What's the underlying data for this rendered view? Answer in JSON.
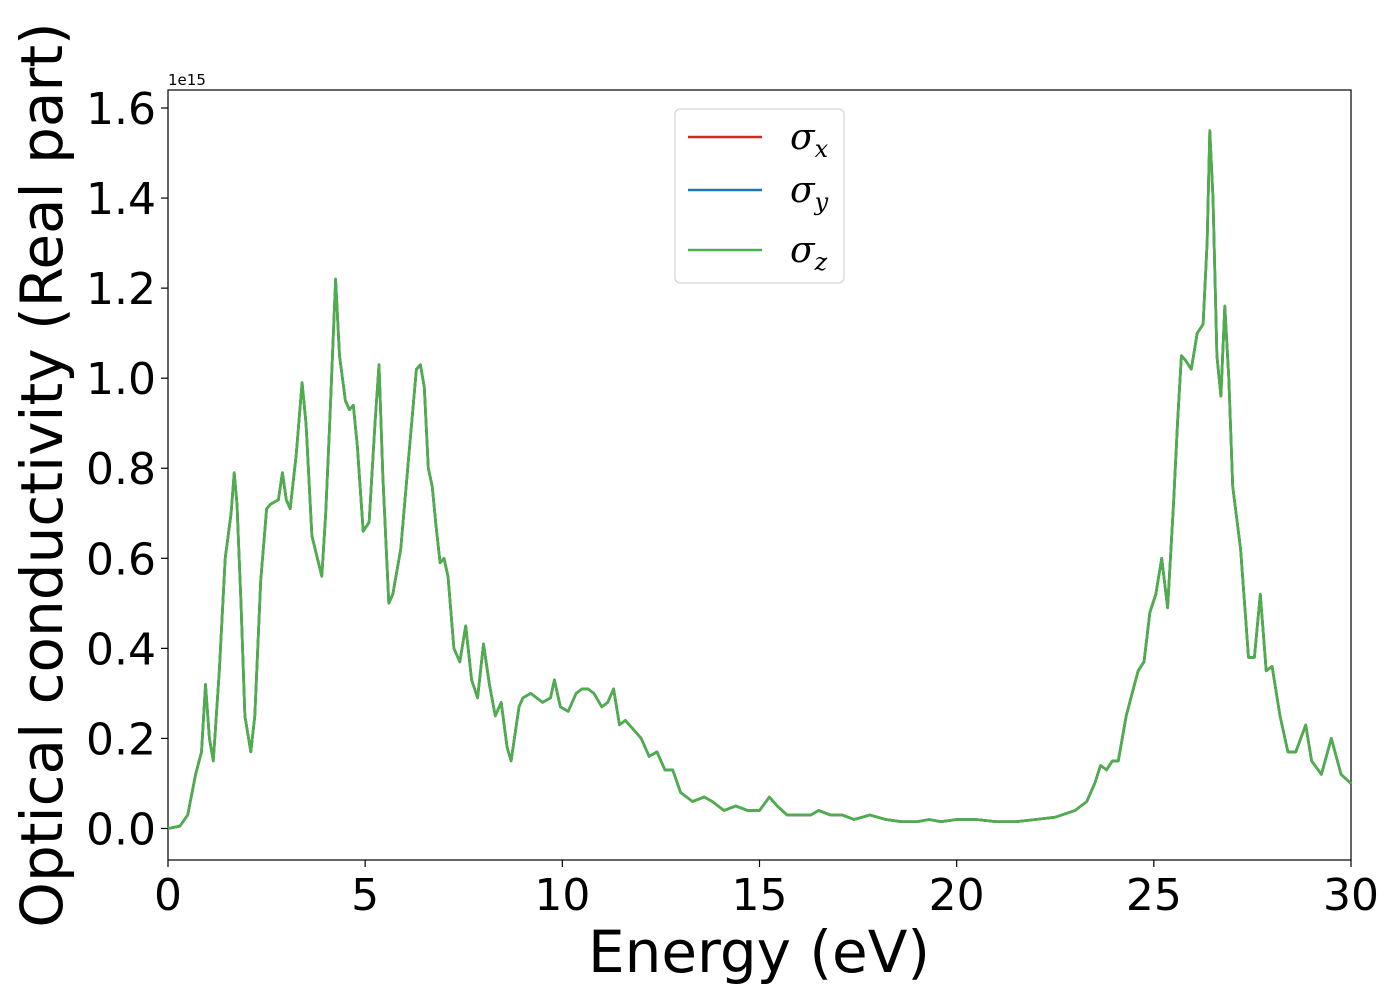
{
  "chart_data": {
    "type": "line",
    "xlabel": "Energy (eV)",
    "ylabel": "Optical conductivity (Real part)",
    "y_offset_label": "1e15",
    "xlim": [
      0,
      30
    ],
    "ylim": [
      -0.07,
      1.64
    ],
    "x_scale": "linear",
    "y_scale": "linear",
    "grid": false,
    "legend_position": "upper-center",
    "x_ticks": [
      0,
      5,
      10,
      15,
      20,
      25,
      30
    ],
    "x_tick_labels": [
      "0",
      "5",
      "10",
      "15",
      "20",
      "25",
      "30"
    ],
    "y_ticks": [
      0.0,
      0.2,
      0.4,
      0.6,
      0.8,
      1.0,
      1.2,
      1.4,
      1.6
    ],
    "y_tick_labels": [
      "0.0",
      "0.2",
      "0.4",
      "0.6",
      "0.8",
      "1.0",
      "1.2",
      "1.4",
      "1.6"
    ],
    "legend": [
      {
        "symbol": "σ",
        "sub": "x",
        "color": "#d62728"
      },
      {
        "symbol": "σ",
        "sub": "y",
        "color": "#1f77b4"
      },
      {
        "symbol": "σ",
        "sub": "z",
        "color": "#4daf4a"
      }
    ],
    "series_note_colors": {
      "x": "#d62728",
      "y": "#1f77b4",
      "z": "#4daf4a"
    },
    "shared_curve": {
      "x": [
        0,
        0.3,
        0.5,
        0.7,
        0.85,
        0.95,
        1.05,
        1.15,
        1.3,
        1.45,
        1.6,
        1.68,
        1.75,
        1.85,
        1.95,
        2.1,
        2.2,
        2.35,
        2.5,
        2.6,
        2.8,
        2.9,
        3.0,
        3.1,
        3.25,
        3.4,
        3.5,
        3.65,
        3.9,
        4.0,
        4.1,
        4.25,
        4.35,
        4.5,
        4.6,
        4.7,
        4.8,
        4.95,
        5.1,
        5.25,
        5.35,
        5.45,
        5.6,
        5.7,
        5.9,
        6.1,
        6.3,
        6.4,
        6.5,
        6.6,
        6.7,
        6.8,
        6.9,
        7.0,
        7.1,
        7.25,
        7.4,
        7.55,
        7.7,
        7.85,
        8.0,
        8.15,
        8.3,
        8.45,
        8.6,
        8.7,
        8.9,
        9.0,
        9.2,
        9.35,
        9.5,
        9.7,
        9.8,
        9.95,
        10.15,
        10.35,
        10.5,
        10.65,
        10.8,
        11.0,
        11.15,
        11.3,
        11.45,
        11.6,
        11.8,
        12.0,
        12.2,
        12.4,
        12.6,
        12.8,
        13.0,
        13.3,
        13.6,
        13.8,
        14.1,
        14.4,
        14.7,
        15.0,
        15.25,
        15.45,
        15.7,
        16.0,
        16.3,
        16.5,
        16.8,
        17.1,
        17.4,
        17.8,
        18.2,
        18.6,
        19.0,
        19.3,
        19.6,
        20.0,
        20.5,
        21.0,
        21.5,
        22.0,
        22.5,
        23.0,
        23.3,
        23.5,
        23.65,
        23.8,
        23.95,
        24.1,
        24.3,
        24.45,
        24.6,
        24.75,
        24.9,
        25.05,
        25.2,
        25.35,
        25.5,
        25.6,
        25.7,
        25.8,
        25.95,
        26.1,
        26.25,
        26.35,
        26.42,
        26.5,
        26.6,
        26.7,
        26.8,
        26.9,
        27.0,
        27.2,
        27.4,
        27.55,
        27.7,
        27.85,
        28.0,
        28.2,
        28.4,
        28.6,
        28.85,
        29.0,
        29.25,
        29.5,
        29.75,
        30.0
      ],
      "y": [
        0.0,
        0.005,
        0.03,
        0.12,
        0.17,
        0.32,
        0.2,
        0.15,
        0.35,
        0.6,
        0.7,
        0.79,
        0.72,
        0.5,
        0.25,
        0.17,
        0.25,
        0.55,
        0.71,
        0.72,
        0.73,
        0.79,
        0.73,
        0.71,
        0.83,
        0.99,
        0.9,
        0.65,
        0.56,
        0.7,
        0.9,
        1.22,
        1.05,
        0.95,
        0.93,
        0.94,
        0.85,
        0.66,
        0.68,
        0.9,
        1.03,
        0.78,
        0.5,
        0.52,
        0.62,
        0.82,
        1.02,
        1.03,
        0.98,
        0.8,
        0.76,
        0.67,
        0.59,
        0.6,
        0.56,
        0.4,
        0.37,
        0.45,
        0.33,
        0.29,
        0.41,
        0.32,
        0.25,
        0.28,
        0.18,
        0.15,
        0.27,
        0.29,
        0.3,
        0.29,
        0.28,
        0.29,
        0.33,
        0.27,
        0.26,
        0.3,
        0.31,
        0.31,
        0.3,
        0.27,
        0.28,
        0.31,
        0.23,
        0.24,
        0.22,
        0.2,
        0.16,
        0.17,
        0.13,
        0.13,
        0.08,
        0.06,
        0.07,
        0.06,
        0.04,
        0.05,
        0.04,
        0.04,
        0.07,
        0.05,
        0.03,
        0.03,
        0.03,
        0.04,
        0.03,
        0.03,
        0.02,
        0.03,
        0.02,
        0.015,
        0.015,
        0.02,
        0.015,
        0.02,
        0.02,
        0.015,
        0.015,
        0.02,
        0.025,
        0.04,
        0.06,
        0.1,
        0.14,
        0.13,
        0.15,
        0.15,
        0.25,
        0.3,
        0.35,
        0.37,
        0.48,
        0.52,
        0.6,
        0.49,
        0.72,
        0.9,
        1.05,
        1.04,
        1.02,
        1.1,
        1.12,
        1.3,
        1.55,
        1.4,
        1.05,
        0.96,
        1.16,
        1.0,
        0.76,
        0.62,
        0.38,
        0.38,
        0.52,
        0.35,
        0.36,
        0.25,
        0.17,
        0.17,
        0.23,
        0.15,
        0.12,
        0.2,
        0.12,
        0.1
      ]
    }
  }
}
